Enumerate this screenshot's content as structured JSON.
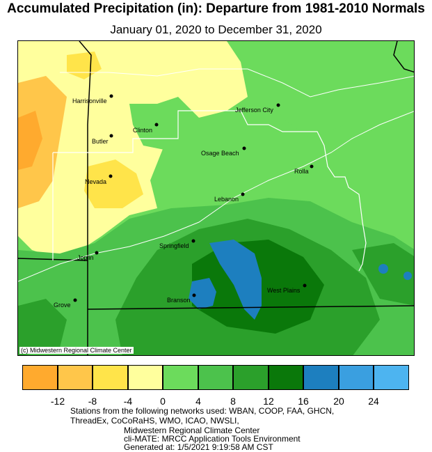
{
  "title": "Accumulated Precipitation (in): Departure from 1981-2010 Normals",
  "subtitle": "January 01, 2020 to December 31, 2020",
  "credit": "(c) Midwestern Regional Climate Center",
  "cities": [
    {
      "name": "Harrisonville",
      "key": "harrisonville"
    },
    {
      "name": "Jefferson City",
      "key": "jefferson-city"
    },
    {
      "name": "Clinton",
      "key": "clinton"
    },
    {
      "name": "Butler",
      "key": "butler"
    },
    {
      "name": "Osage Beach",
      "key": "osage-beach"
    },
    {
      "name": "Rolla",
      "key": "rolla"
    },
    {
      "name": "Nevada",
      "key": "nevada"
    },
    {
      "name": "Lebanon",
      "key": "lebanon"
    },
    {
      "name": "Springfield",
      "key": "springfield"
    },
    {
      "name": "Joplin",
      "key": "joplin"
    },
    {
      "name": "West Plains",
      "key": "west-plains"
    },
    {
      "name": "Branson",
      "key": "branson"
    },
    {
      "name": "Grove",
      "key": "grove"
    }
  ],
  "legend": {
    "colors": [
      "#ffaa2e",
      "#ffc64a",
      "#ffe44a",
      "#ffff9d",
      "#6cdb5c",
      "#4cc24c",
      "#2ba02b",
      "#0a780a",
      "#1d7fbf",
      "#3a9fe0",
      "#4db4f0"
    ],
    "ticks": [
      "-12",
      "-8",
      "-4",
      "0",
      "4",
      "8",
      "12",
      "16",
      "20",
      "24"
    ]
  },
  "footer": {
    "line1": "Stations from the following networks used: WBAN, COOP, FAA, GHCN,",
    "line2": "ThreadEx, CoCoRaHS, WMO, ICAO, NWSLI,",
    "line3": "Midwestern Regional Climate Center",
    "line4": "cli-MATE: MRCC Application Tools Environment",
    "line5": "Generated at: 1/5/2021 9:19:58 AM CST"
  }
}
